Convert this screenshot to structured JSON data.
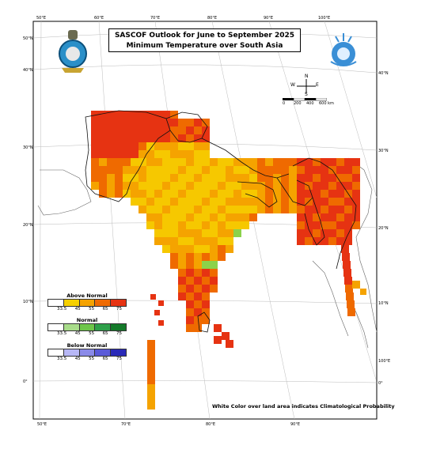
{
  "title": {
    "line1": "SASCOF Outlook for June to September 2025",
    "line2": "Minimum Temperature over South Asia"
  },
  "axes": {
    "top_lon": [
      "50°E",
      "60°E",
      "70°E",
      "80°E",
      "90°E",
      "100°E"
    ],
    "bottom_lon": [
      "50°E",
      "70°E",
      "80°E",
      "90°E"
    ],
    "left_lat": [
      "50°N",
      "40°N",
      "30°N",
      "20°N",
      "10°N",
      "0°"
    ],
    "right_lat": [
      "40°N",
      "30°N",
      "20°N",
      "10°N",
      "100°E",
      "0°"
    ]
  },
  "compass": {
    "n": "N",
    "s": "S",
    "e": "E",
    "w": "W"
  },
  "scale_bar": {
    "labels": [
      "0",
      "200",
      "400",
      "600 km"
    ]
  },
  "legend": [
    {
      "title": "Above Normal",
      "values": [
        "33.5",
        "45",
        "55",
        "65",
        "75"
      ],
      "colors": [
        "#ffffff",
        "#f6d000",
        "#f5a300",
        "#ef6a00",
        "#e63312"
      ]
    },
    {
      "title": "Normal",
      "values": [
        "33.5",
        "45",
        "55",
        "65",
        "75"
      ],
      "colors": [
        "#ffffff",
        "#a8dc8a",
        "#6ec64a",
        "#2fa04a",
        "#147a2a"
      ]
    },
    {
      "title": "Below Normal",
      "values": [
        "33.5",
        "45",
        "55",
        "65",
        "75"
      ],
      "colors": [
        "#ffffff",
        "#b7b7f5",
        "#8a8ae8",
        "#5a5ad8",
        "#2a2ab8"
      ]
    }
  ],
  "note": "White Color over land area indicates Climatological Probability",
  "map_colors": {
    "yellow": "#f6c800",
    "orange": "#f5a300",
    "darkorange": "#ef6a00",
    "red": "#e63312",
    "green": "#8bd24a"
  }
}
